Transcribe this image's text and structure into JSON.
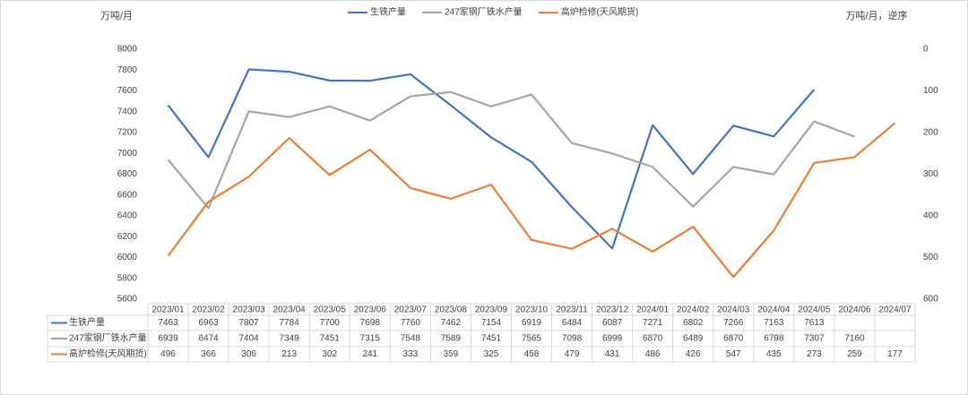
{
  "chart_data": {
    "type": "line",
    "y_label": "万吨/月",
    "y2_label": "万吨/月，逆序",
    "categories": [
      "2023/01",
      "2023/02",
      "2023/03",
      "2023/04",
      "2023/05",
      "2023/06",
      "2023/07",
      "2023/08",
      "2023/09",
      "2023/10",
      "2023/11",
      "2023/12",
      "2024/01",
      "2024/02",
      "2024/03",
      "2024/04",
      "2024/05",
      "2024/06",
      "2024/07"
    ],
    "series": [
      {
        "name": "生铁产量",
        "color": "#4472c4",
        "values": [
          7463,
          6963,
          7807,
          7784,
          7700,
          7698,
          7760,
          7462,
          7154,
          6919,
          6484,
          6087,
          7271,
          6802,
          7266,
          7163,
          7613,
          null,
          null
        ]
      },
      {
        "name": "247家钢厂铁水产量",
        "color": "#a5a5a5",
        "values": [
          6939,
          6474,
          7404,
          7349,
          7451,
          7315,
          7548,
          7589,
          7451,
          7565,
          7098,
          6999,
          6870,
          6489,
          6870,
          6798,
          7307,
          7160,
          null
        ]
      },
      {
        "name": "高炉检修(天风期货)",
        "color": "#ed7d31",
        "axis": "y2",
        "values": [
          496,
          366,
          306,
          213,
          302,
          241,
          333,
          359,
          325,
          458,
          479,
          431,
          486,
          426,
          547,
          435,
          273,
          259,
          177
        ]
      }
    ],
    "ylim": [
      5600,
      8000
    ],
    "yticks": [
      5600,
      5800,
      6000,
      6200,
      6400,
      6600,
      6800,
      7000,
      7200,
      7400,
      7600,
      7800,
      8000
    ],
    "y2lim": [
      600,
      0
    ],
    "y2ticks": [
      0,
      100,
      200,
      300,
      400,
      500,
      600
    ],
    "legend": "top",
    "data_table": true
  }
}
